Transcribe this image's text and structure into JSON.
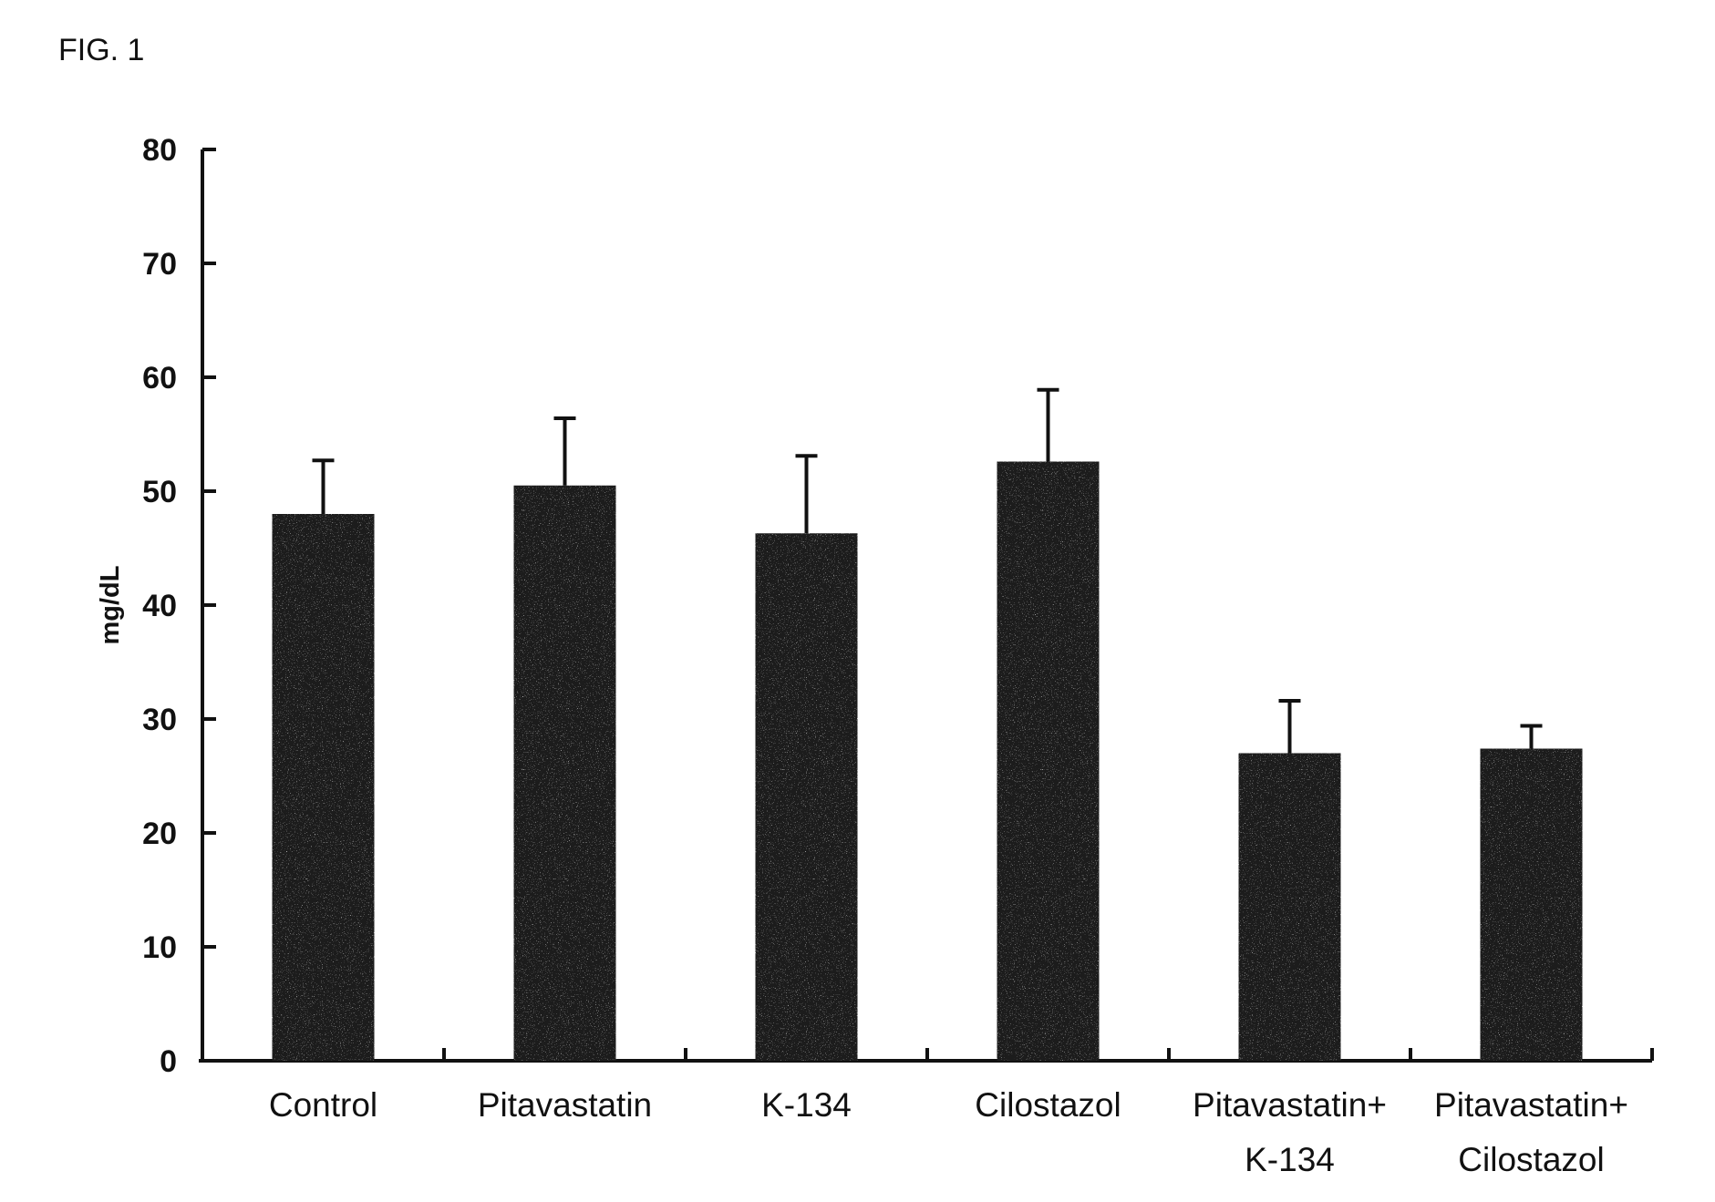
{
  "figure_label": "FIG. 1",
  "chart_data": {
    "type": "bar",
    "title": "",
    "xlabel": "",
    "ylabel": "mg/dL",
    "ylim": [
      0,
      80
    ],
    "yticks": [
      0,
      10,
      20,
      30,
      40,
      50,
      60,
      70,
      80
    ],
    "categories": [
      [
        "Control"
      ],
      [
        "Pitavastatin"
      ],
      [
        "K-134"
      ],
      [
        "Cilostazol"
      ],
      [
        "Pitavastatin+",
        "K-134"
      ],
      [
        "Pitavastatin+",
        "Cilostazol"
      ]
    ],
    "values": [
      48,
      50.5,
      46.3,
      52.6,
      27,
      27.4
    ],
    "error_upper": [
      4.7,
      5.9,
      6.8,
      6.3,
      4.6,
      2
    ]
  },
  "colors": {
    "bar_fill": "#1c1c1c",
    "axis": "#111111",
    "background": "#ffffff"
  }
}
